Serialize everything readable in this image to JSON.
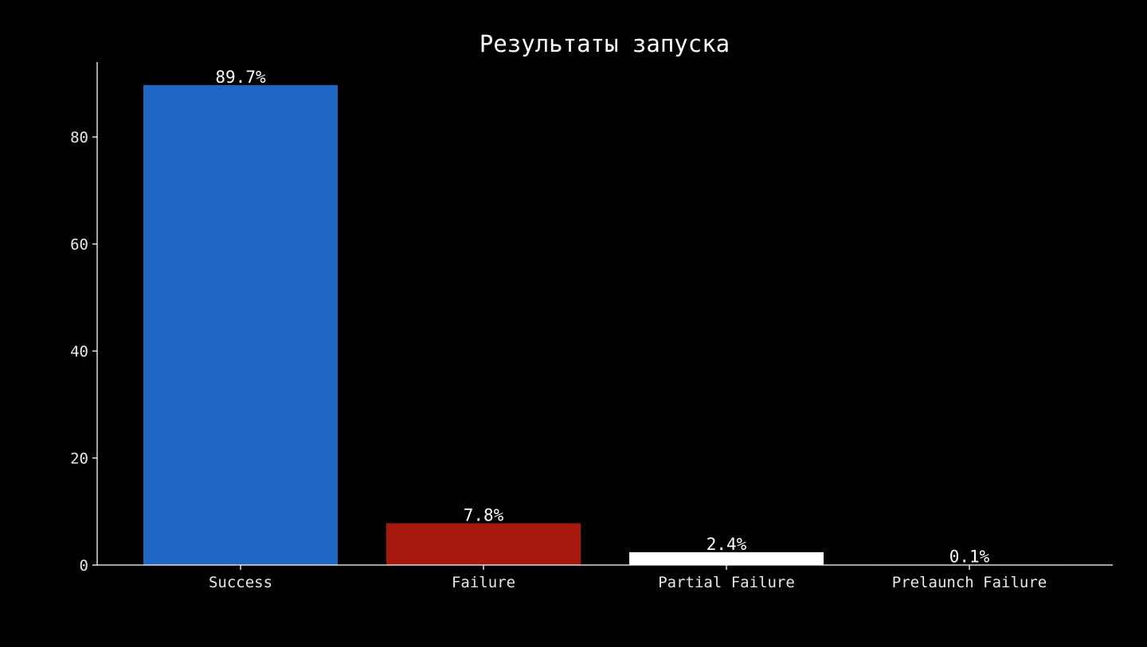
{
  "chart_data": {
    "type": "bar",
    "title": "Результаты запуска",
    "xlabel": "",
    "ylabel": "",
    "categories": [
      "Success",
      "Failure",
      "Partial Failure",
      "Prelaunch Failure"
    ],
    "values": [
      89.7,
      7.8,
      2.4,
      0.1
    ],
    "data_labels": [
      "89.7%",
      "7.8%",
      "2.4%",
      "0.1%"
    ],
    "colors": [
      "#1f67c2",
      "#a5190e",
      "#ffffff",
      "#4a4a4a"
    ],
    "ylim": [
      0,
      94
    ],
    "yticks": [
      0,
      20,
      40,
      60,
      80
    ],
    "ytick_labels": [
      "0",
      "20",
      "40",
      "60",
      "80"
    ],
    "grid": false,
    "background": "#000000",
    "axis_color": "#ffffff",
    "text_color": "#ffffff"
  }
}
